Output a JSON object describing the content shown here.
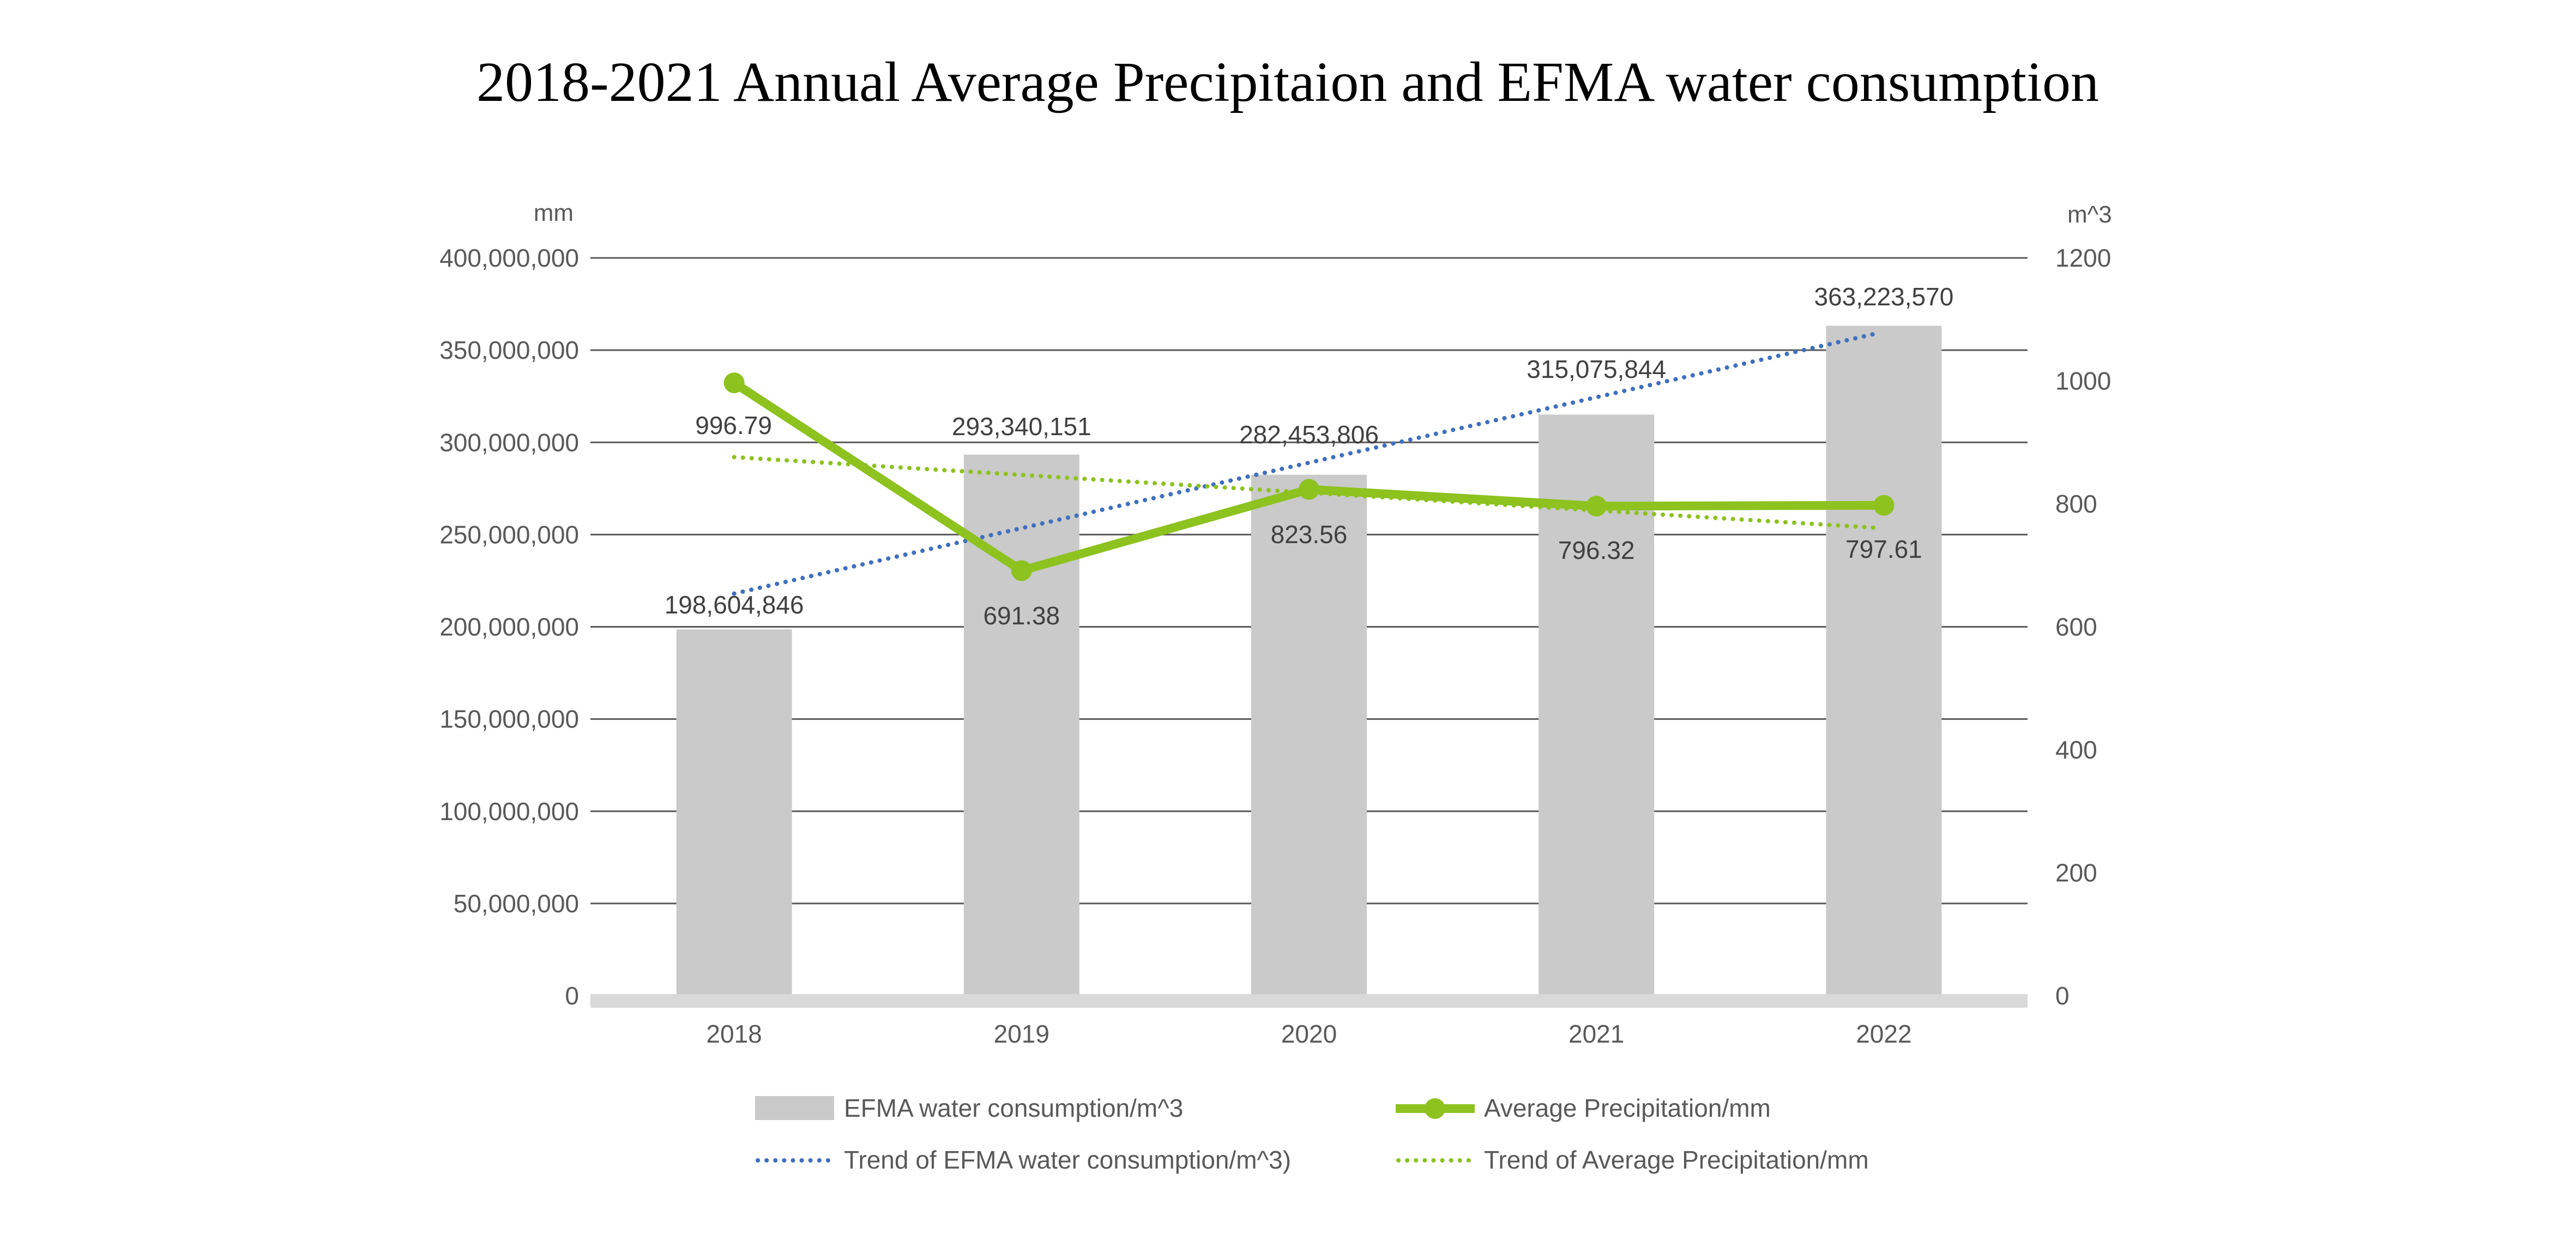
{
  "chart_data": {
    "type": "bar",
    "title": "2018-2021 Annual Average Precipitaion and EFMA water consumption",
    "categories": [
      "2018",
      "2019",
      "2020",
      "2021",
      "2022"
    ],
    "left_axis": {
      "unit_label": "mm",
      "ylim": [
        0,
        400000000
      ],
      "ticks": [
        0,
        50000000,
        100000000,
        150000000,
        200000000,
        250000000,
        300000000,
        350000000,
        400000000
      ],
      "tick_labels": [
        "0",
        "50,000,000",
        "100,000,000",
        "150,000,000",
        "200,000,000",
        "250,000,000",
        "300,000,000",
        "350,000,000",
        "400,000,000"
      ]
    },
    "right_axis": {
      "unit_label": "m^3",
      "ylim": [
        0,
        1200
      ],
      "ticks": [
        0,
        200,
        400,
        600,
        800,
        1000,
        1200
      ],
      "tick_labels": [
        "0",
        "200",
        "400",
        "600",
        "800",
        "1000",
        "1200"
      ]
    },
    "grid": true,
    "legend_position": "bottom",
    "series": [
      {
        "name": "EFMA water consumption/m^3",
        "type": "bar",
        "axis": "left",
        "color": "#c9cac9",
        "values": [
          198604846,
          293340151,
          282453806,
          315075844,
          363223570
        ],
        "labels": [
          "198,604,846",
          "293,340,151",
          "282,453,806",
          "315,075,844",
          "363,223,570"
        ]
      },
      {
        "name": "Average Precipitation/mm",
        "type": "line",
        "axis": "right",
        "color": "#8dc21f",
        "values": [
          996.79,
          691.38,
          823.56,
          796.32,
          797.61
        ],
        "labels": [
          "996.79",
          "691.38",
          "823.56",
          "796.32",
          "797.61"
        ]
      },
      {
        "name": "Trend of EFMA water consumption/m^3)",
        "type": "trendline",
        "axis": "left",
        "color": "#3f6fbf",
        "start": 218000000,
        "end": 359000000
      },
      {
        "name": "Trend of Average Precipitation/mm",
        "type": "trendline",
        "axis": "right",
        "color": "#8dc21f",
        "start": 876,
        "end": 761
      }
    ]
  }
}
